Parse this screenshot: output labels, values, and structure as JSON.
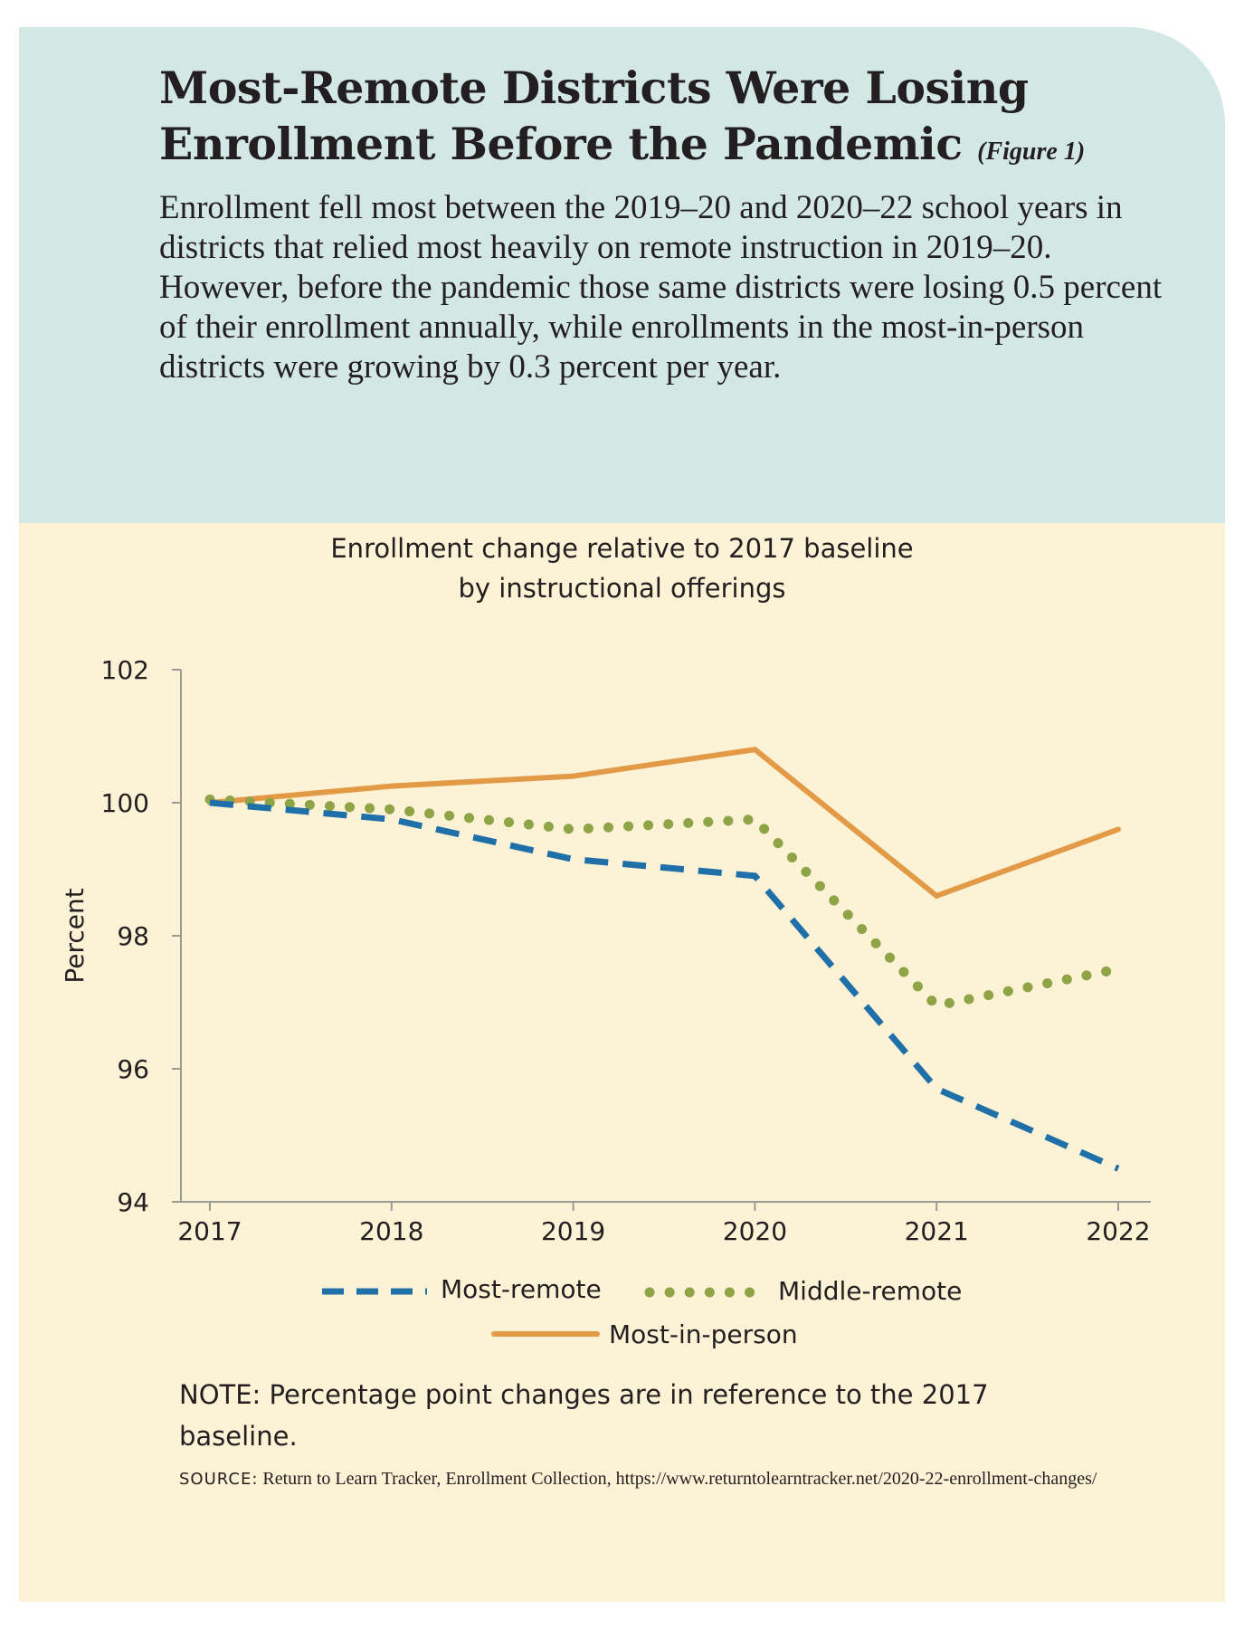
{
  "headline": {
    "line1": "Most-Remote Districts Were Losing",
    "line2": "Enrollment Before the Pandemic",
    "figure_tag": "(Figure 1)"
  },
  "deck": "Enrollment fell most between the 2019–20 and 2020–22 school years in districts that relied most heavily on remote instruction in 2019–20. However, before the pandemic those same districts were losing 0.5 percent of their enrollment annually, while enrollments in the most-in-person districts were growing by 0.3 percent per year.",
  "note": "NOTE: Percentage point changes are in reference to the 2017 baseline.",
  "source": {
    "label": "SOURCE:",
    "text": "Return to Learn Tracker, Enrollment Collection, https://www.returntolearntracker.net/2020-22-enrollment-changes/"
  },
  "colors": {
    "header_bg": "#d3e7e4",
    "chart_bg": "#fcf2d6",
    "most_remote": "#1f6fa8",
    "middle_remote": "#8ea446",
    "most_in_person": "#e39a46",
    "axis": "#9b9b93"
  },
  "chart_data": {
    "type": "line",
    "title": "Enrollment change relative to 2017 baseline",
    "subtitle": "by instructional offerings",
    "ylabel": "Percent",
    "xlabel": "",
    "x": [
      "2017",
      "2018",
      "2019",
      "2020",
      "2021",
      "2022"
    ],
    "ylim": [
      94,
      102
    ],
    "yticks": [
      94,
      96,
      98,
      100,
      102
    ],
    "grid": false,
    "legend_position": "bottom",
    "series": [
      {
        "name": "Most-remote",
        "style": "dashed",
        "values": [
          100.0,
          99.75,
          99.15,
          98.9,
          95.7,
          94.5
        ]
      },
      {
        "name": "Middle-remote",
        "style": "dotted",
        "values": [
          100.05,
          99.9,
          99.6,
          99.75,
          96.95,
          97.5
        ]
      },
      {
        "name": "Most-in-person",
        "style": "solid",
        "values": [
          100.0,
          100.25,
          100.4,
          100.8,
          98.6,
          99.6
        ]
      }
    ]
  }
}
